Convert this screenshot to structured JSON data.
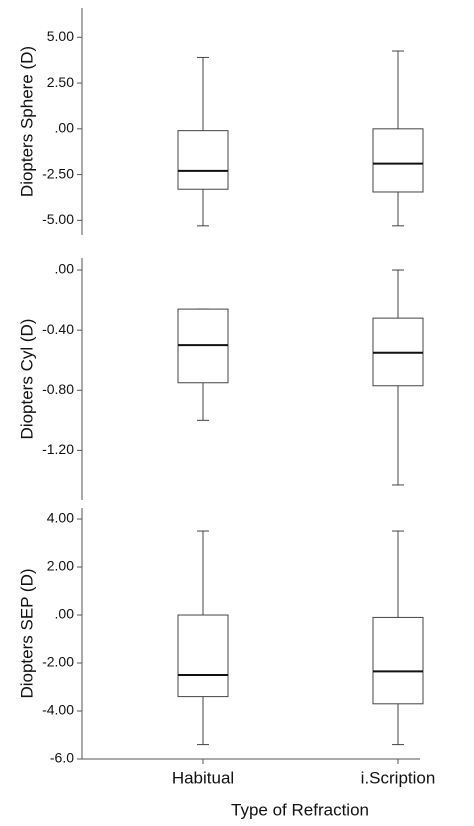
{
  "chart_data": [
    {
      "type": "box",
      "ylabel": "Diopters Sphere (D)",
      "ylim": [
        -5.8,
        6.6
      ],
      "yticks": [
        {
          "value": 5,
          "label": "5.00"
        },
        {
          "value": 2.5,
          "label": "2.50"
        },
        {
          "value": 0,
          "label": ".00"
        },
        {
          "value": -2.5,
          "label": "-2.50"
        },
        {
          "value": -5,
          "label": "-5.00"
        }
      ],
      "boxes": [
        {
          "min": -5.3,
          "q1": -3.3,
          "median": -2.3,
          "q3": -0.1,
          "max": 3.9
        },
        {
          "min": -5.3,
          "q1": -3.45,
          "median": -1.9,
          "q3": 0,
          "max": 4.25
        }
      ]
    },
    {
      "type": "box",
      "ylabel": "Diopters Cyl (D)",
      "ylim": [
        -1.53,
        0.08
      ],
      "yticks": [
        {
          "value": 0,
          "label": ".00"
        },
        {
          "value": -0.4,
          "label": "-0.40"
        },
        {
          "value": -0.8,
          "label": "-0.80"
        },
        {
          "value": -1.2,
          "label": "-1.20"
        }
      ],
      "boxes": [
        {
          "min": -1.0,
          "q1": -0.75,
          "median": -0.5,
          "q3": -0.26,
          "max": -0.26
        },
        {
          "min": -1.43,
          "q1": -0.77,
          "median": -0.55,
          "q3": -0.32,
          "max": 0
        }
      ]
    },
    {
      "type": "box",
      "ylabel": "Diopters SEP (D)",
      "ylim": [
        -6.0,
        4.46
      ],
      "yticks": [
        {
          "value": 4,
          "label": "4.00"
        },
        {
          "value": 2,
          "label": "2.00"
        },
        {
          "value": 0,
          "label": ".00"
        },
        {
          "value": -2,
          "label": "-2.00"
        },
        {
          "value": -4,
          "label": "-4.00"
        },
        {
          "value": -6,
          "label": "-6.0"
        }
      ],
      "boxes": [
        {
          "min": -5.4,
          "q1": -3.4,
          "median": -2.5,
          "q3": 0,
          "max": 3.5
        },
        {
          "min": -5.4,
          "q1": -3.7,
          "median": -2.35,
          "q3": -0.1,
          "max": 3.5
        }
      ],
      "categories": [
        "Habitual",
        "i.Scription"
      ],
      "xlabel": "Type of Refraction"
    }
  ]
}
